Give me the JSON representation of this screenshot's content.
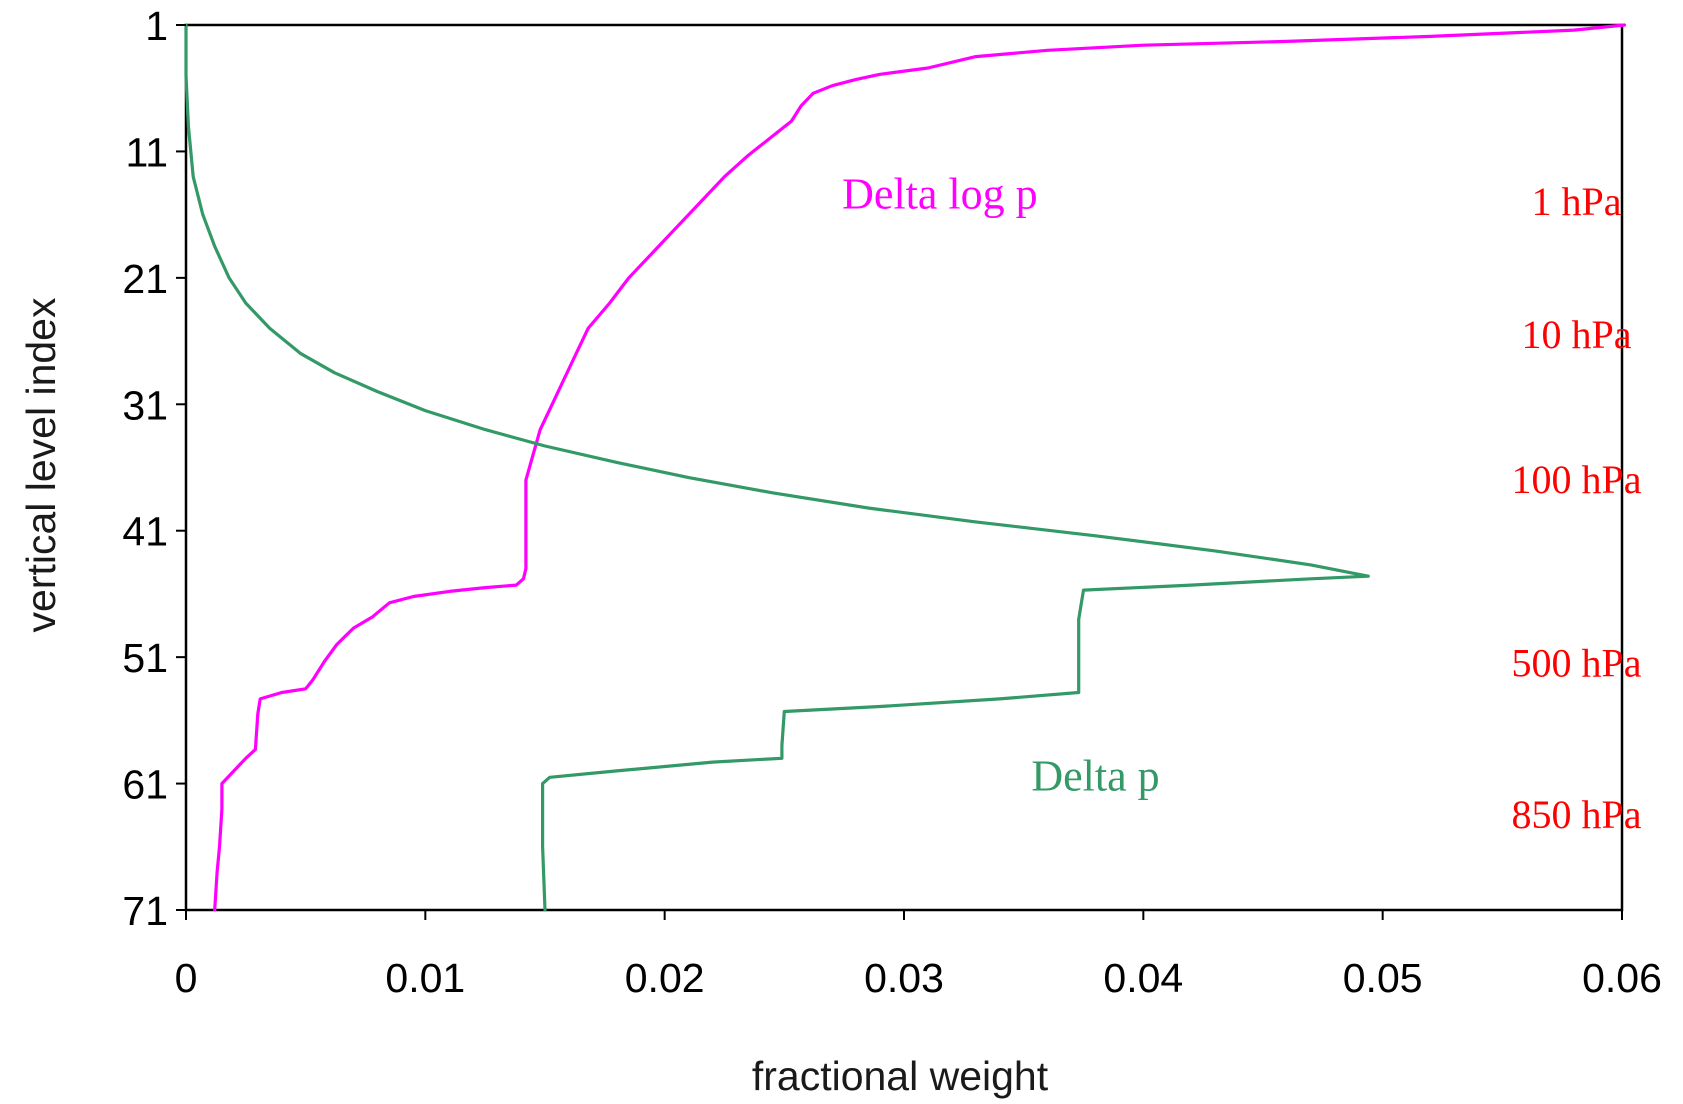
{
  "chart_data": {
    "type": "line",
    "xlabel": "fractional weight",
    "ylabel": "vertical level index",
    "xlim": [
      0,
      0.06
    ],
    "ylim": [
      1,
      71
    ],
    "y_inverted": true,
    "x_ticks": [
      "0",
      "0.01",
      "0.02",
      "0.03",
      "0.04",
      "0.05",
      "0.06"
    ],
    "y_ticks": [
      "1",
      "11",
      "21",
      "31",
      "41",
      "51",
      "61",
      "71"
    ],
    "grid": false,
    "series": [
      {
        "name": "Delta log p",
        "color": "#ff00ff",
        "points": [
          [
            0.0601,
            1
          ],
          [
            0.058,
            1.4
          ],
          [
            0.052,
            1.9
          ],
          [
            0.046,
            2.3
          ],
          [
            0.04,
            2.6
          ],
          [
            0.036,
            3.0
          ],
          [
            0.033,
            3.5
          ],
          [
            0.031,
            4.4
          ],
          [
            0.029,
            4.9
          ],
          [
            0.028,
            5.3
          ],
          [
            0.027,
            5.8
          ],
          [
            0.0262,
            6.4
          ],
          [
            0.0257,
            7.4
          ],
          [
            0.0253,
            8.6
          ],
          [
            0.0245,
            9.8
          ],
          [
            0.0235,
            11.3
          ],
          [
            0.0225,
            13.0
          ],
          [
            0.0215,
            15.0
          ],
          [
            0.0205,
            17.0
          ],
          [
            0.0195,
            19.0
          ],
          [
            0.0185,
            21.0
          ],
          [
            0.0177,
            23.0
          ],
          [
            0.0168,
            25.0
          ],
          [
            0.0163,
            27.0
          ],
          [
            0.0158,
            29.0
          ],
          [
            0.0153,
            31.0
          ],
          [
            0.0148,
            33.0
          ],
          [
            0.0145,
            35.0
          ],
          [
            0.0142,
            37.0
          ],
          [
            0.0142,
            40.0
          ],
          [
            0.0142,
            44.0
          ],
          [
            0.0141,
            44.8
          ],
          [
            0.0138,
            45.3
          ],
          [
            0.0125,
            45.5
          ],
          [
            0.011,
            45.8
          ],
          [
            0.0095,
            46.2
          ],
          [
            0.0085,
            46.7
          ],
          [
            0.0078,
            47.8
          ],
          [
            0.007,
            48.7
          ],
          [
            0.0063,
            50.0
          ],
          [
            0.0058,
            51.3
          ],
          [
            0.0053,
            52.8
          ],
          [
            0.005,
            53.5
          ],
          [
            0.004,
            53.8
          ],
          [
            0.0031,
            54.3
          ],
          [
            0.003,
            55.5
          ],
          [
            0.0029,
            58.3
          ],
          [
            0.0025,
            59.0
          ],
          [
            0.002,
            60.0
          ],
          [
            0.0015,
            61.0
          ],
          [
            0.0015,
            63.0
          ],
          [
            0.0014,
            66.0
          ],
          [
            0.0013,
            68.0
          ],
          [
            0.0012,
            71.0
          ]
        ]
      },
      {
        "name": "Delta p",
        "color": "#339966",
        "points": [
          [
            0.0,
            1
          ],
          [
            0.0,
            5.0
          ],
          [
            0.0001,
            9.0
          ],
          [
            0.0003,
            13.0
          ],
          [
            0.0007,
            16.0
          ],
          [
            0.0012,
            18.5
          ],
          [
            0.0018,
            21.0
          ],
          [
            0.0025,
            23.0
          ],
          [
            0.0035,
            25.0
          ],
          [
            0.0048,
            27.0
          ],
          [
            0.0062,
            28.5
          ],
          [
            0.008,
            30.0
          ],
          [
            0.01,
            31.5
          ],
          [
            0.0125,
            33.0
          ],
          [
            0.015,
            34.3
          ],
          [
            0.018,
            35.6
          ],
          [
            0.021,
            36.8
          ],
          [
            0.0245,
            38.0
          ],
          [
            0.0285,
            39.2
          ],
          [
            0.033,
            40.3
          ],
          [
            0.038,
            41.4
          ],
          [
            0.043,
            42.6
          ],
          [
            0.047,
            43.7
          ],
          [
            0.0494,
            44.6
          ],
          [
            0.047,
            44.8
          ],
          [
            0.042,
            45.3
          ],
          [
            0.0375,
            45.7
          ],
          [
            0.0373,
            48.0
          ],
          [
            0.0373,
            51.5
          ],
          [
            0.0373,
            53.8
          ],
          [
            0.034,
            54.3
          ],
          [
            0.029,
            54.9
          ],
          [
            0.025,
            55.3
          ],
          [
            0.0249,
            58.0
          ],
          [
            0.0249,
            59.0
          ],
          [
            0.022,
            59.3
          ],
          [
            0.018,
            60.0
          ],
          [
            0.0152,
            60.5
          ],
          [
            0.0149,
            61.0
          ],
          [
            0.0149,
            66.0
          ],
          [
            0.015,
            71.0
          ]
        ]
      }
    ],
    "annotations": [
      {
        "text": "Delta log p",
        "color": "#ff00ff",
        "x": 0.0315,
        "y": 14.5
      },
      {
        "text": "Delta p",
        "color": "#339966",
        "x": 0.038,
        "y": 60.5
      },
      {
        "text": "1 hPa",
        "color": "#ff0000",
        "x": 0.0581,
        "y": 15
      },
      {
        "text": "10 hPa",
        "color": "#ff0000",
        "x": 0.0581,
        "y": 25.5
      },
      {
        "text": "100 hPa",
        "color": "#ff0000",
        "x": 0.0581,
        "y": 37
      },
      {
        "text": "500 hPa",
        "color": "#ff0000",
        "x": 0.0581,
        "y": 51.5
      },
      {
        "text": "850 hPa",
        "color": "#ff0000",
        "x": 0.0581,
        "y": 63.5
      }
    ]
  }
}
